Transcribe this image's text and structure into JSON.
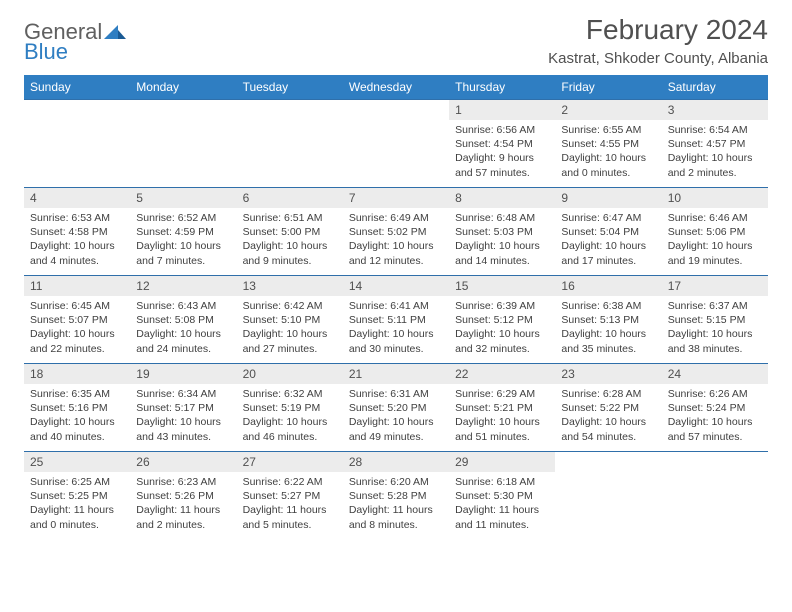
{
  "brand": {
    "word1": "General",
    "word2": "Blue"
  },
  "header": {
    "month_title": "February 2024",
    "location": "Kastrat, Shkoder County, Albania"
  },
  "colors": {
    "header_bg": "#2f7ec2",
    "header_text": "#ffffff",
    "daynum_bg": "#ececec",
    "border": "#2f6faa",
    "text": "#404040"
  },
  "weekdays": [
    "Sunday",
    "Monday",
    "Tuesday",
    "Wednesday",
    "Thursday",
    "Friday",
    "Saturday"
  ],
  "first_weekday_index": 4,
  "days": [
    {
      "n": 1,
      "sunrise": "6:56 AM",
      "sunset": "4:54 PM",
      "daylight": "9 hours and 57 minutes."
    },
    {
      "n": 2,
      "sunrise": "6:55 AM",
      "sunset": "4:55 PM",
      "daylight": "10 hours and 0 minutes."
    },
    {
      "n": 3,
      "sunrise": "6:54 AM",
      "sunset": "4:57 PM",
      "daylight": "10 hours and 2 minutes."
    },
    {
      "n": 4,
      "sunrise": "6:53 AM",
      "sunset": "4:58 PM",
      "daylight": "10 hours and 4 minutes."
    },
    {
      "n": 5,
      "sunrise": "6:52 AM",
      "sunset": "4:59 PM",
      "daylight": "10 hours and 7 minutes."
    },
    {
      "n": 6,
      "sunrise": "6:51 AM",
      "sunset": "5:00 PM",
      "daylight": "10 hours and 9 minutes."
    },
    {
      "n": 7,
      "sunrise": "6:49 AM",
      "sunset": "5:02 PM",
      "daylight": "10 hours and 12 minutes."
    },
    {
      "n": 8,
      "sunrise": "6:48 AM",
      "sunset": "5:03 PM",
      "daylight": "10 hours and 14 minutes."
    },
    {
      "n": 9,
      "sunrise": "6:47 AM",
      "sunset": "5:04 PM",
      "daylight": "10 hours and 17 minutes."
    },
    {
      "n": 10,
      "sunrise": "6:46 AM",
      "sunset": "5:06 PM",
      "daylight": "10 hours and 19 minutes."
    },
    {
      "n": 11,
      "sunrise": "6:45 AM",
      "sunset": "5:07 PM",
      "daylight": "10 hours and 22 minutes."
    },
    {
      "n": 12,
      "sunrise": "6:43 AM",
      "sunset": "5:08 PM",
      "daylight": "10 hours and 24 minutes."
    },
    {
      "n": 13,
      "sunrise": "6:42 AM",
      "sunset": "5:10 PM",
      "daylight": "10 hours and 27 minutes."
    },
    {
      "n": 14,
      "sunrise": "6:41 AM",
      "sunset": "5:11 PM",
      "daylight": "10 hours and 30 minutes."
    },
    {
      "n": 15,
      "sunrise": "6:39 AM",
      "sunset": "5:12 PM",
      "daylight": "10 hours and 32 minutes."
    },
    {
      "n": 16,
      "sunrise": "6:38 AM",
      "sunset": "5:13 PM",
      "daylight": "10 hours and 35 minutes."
    },
    {
      "n": 17,
      "sunrise": "6:37 AM",
      "sunset": "5:15 PM",
      "daylight": "10 hours and 38 minutes."
    },
    {
      "n": 18,
      "sunrise": "6:35 AM",
      "sunset": "5:16 PM",
      "daylight": "10 hours and 40 minutes."
    },
    {
      "n": 19,
      "sunrise": "6:34 AM",
      "sunset": "5:17 PM",
      "daylight": "10 hours and 43 minutes."
    },
    {
      "n": 20,
      "sunrise": "6:32 AM",
      "sunset": "5:19 PM",
      "daylight": "10 hours and 46 minutes."
    },
    {
      "n": 21,
      "sunrise": "6:31 AM",
      "sunset": "5:20 PM",
      "daylight": "10 hours and 49 minutes."
    },
    {
      "n": 22,
      "sunrise": "6:29 AM",
      "sunset": "5:21 PM",
      "daylight": "10 hours and 51 minutes."
    },
    {
      "n": 23,
      "sunrise": "6:28 AM",
      "sunset": "5:22 PM",
      "daylight": "10 hours and 54 minutes."
    },
    {
      "n": 24,
      "sunrise": "6:26 AM",
      "sunset": "5:24 PM",
      "daylight": "10 hours and 57 minutes."
    },
    {
      "n": 25,
      "sunrise": "6:25 AM",
      "sunset": "5:25 PM",
      "daylight": "11 hours and 0 minutes."
    },
    {
      "n": 26,
      "sunrise": "6:23 AM",
      "sunset": "5:26 PM",
      "daylight": "11 hours and 2 minutes."
    },
    {
      "n": 27,
      "sunrise": "6:22 AM",
      "sunset": "5:27 PM",
      "daylight": "11 hours and 5 minutes."
    },
    {
      "n": 28,
      "sunrise": "6:20 AM",
      "sunset": "5:28 PM",
      "daylight": "11 hours and 8 minutes."
    },
    {
      "n": 29,
      "sunrise": "6:18 AM",
      "sunset": "5:30 PM",
      "daylight": "11 hours and 11 minutes."
    }
  ],
  "labels": {
    "sunrise": "Sunrise:",
    "sunset": "Sunset:",
    "daylight": "Daylight:"
  }
}
